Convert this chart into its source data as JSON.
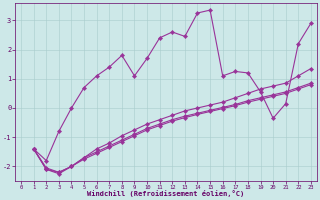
{
  "xlabel": "Windchill (Refroidissement éolien,°C)",
  "bg_color": "#cde8e8",
  "line_color": "#993399",
  "grid_color": "#a8cccc",
  "tick_color": "#660066",
  "xlim": [
    -0.5,
    23.5
  ],
  "ylim": [
    -2.5,
    3.6
  ],
  "xticks": [
    0,
    1,
    2,
    3,
    4,
    5,
    6,
    7,
    8,
    9,
    10,
    11,
    12,
    13,
    14,
    15,
    16,
    17,
    18,
    19,
    20,
    21,
    22,
    23
  ],
  "yticks": [
    -2,
    -1,
    0,
    1,
    2,
    3
  ],
  "line1_x": [
    1,
    2,
    3,
    4,
    5,
    6,
    7,
    8,
    9,
    10,
    11,
    12,
    13,
    14,
    15,
    16,
    17,
    18,
    19,
    20,
    21,
    22,
    23
  ],
  "line1_y": [
    -1.4,
    -1.8,
    -0.8,
    0.0,
    0.7,
    1.1,
    1.4,
    1.8,
    1.1,
    1.7,
    2.4,
    2.6,
    2.45,
    3.25,
    3.35,
    1.1,
    1.25,
    1.2,
    0.55,
    -0.35,
    0.15,
    2.2,
    2.9
  ],
  "line2_x": [
    1,
    2,
    3,
    4,
    5,
    6,
    7,
    8,
    9,
    10,
    11,
    12,
    13,
    14,
    15,
    16,
    17,
    18,
    19,
    20,
    21,
    22,
    23
  ],
  "line2_y": [
    -1.4,
    -2.1,
    -2.25,
    -2.0,
    -1.7,
    -1.4,
    -1.2,
    -0.95,
    -0.75,
    -0.55,
    -0.4,
    -0.25,
    -0.1,
    0.0,
    0.1,
    0.2,
    0.35,
    0.5,
    0.65,
    0.75,
    0.85,
    1.1,
    1.35
  ],
  "line3_x": [
    1,
    2,
    3,
    4,
    5,
    6,
    7,
    8,
    9,
    10,
    11,
    12,
    13,
    14,
    15,
    16,
    17,
    18,
    19,
    20,
    21,
    22,
    23
  ],
  "line3_y": [
    -1.4,
    -2.1,
    -2.2,
    -2.0,
    -1.7,
    -1.5,
    -1.3,
    -1.1,
    -0.9,
    -0.7,
    -0.55,
    -0.4,
    -0.28,
    -0.18,
    -0.08,
    0.02,
    0.12,
    0.25,
    0.35,
    0.45,
    0.55,
    0.7,
    0.85
  ],
  "line4_x": [
    1,
    2,
    3,
    4,
    5,
    6,
    7,
    8,
    9,
    10,
    11,
    12,
    13,
    14,
    15,
    16,
    17,
    18,
    19,
    20,
    21,
    22,
    23
  ],
  "line4_y": [
    -1.4,
    -2.05,
    -2.2,
    -2.0,
    -1.75,
    -1.55,
    -1.35,
    -1.15,
    -0.95,
    -0.75,
    -0.6,
    -0.45,
    -0.33,
    -0.22,
    -0.12,
    -0.02,
    0.08,
    0.2,
    0.3,
    0.4,
    0.5,
    0.65,
    0.8
  ]
}
